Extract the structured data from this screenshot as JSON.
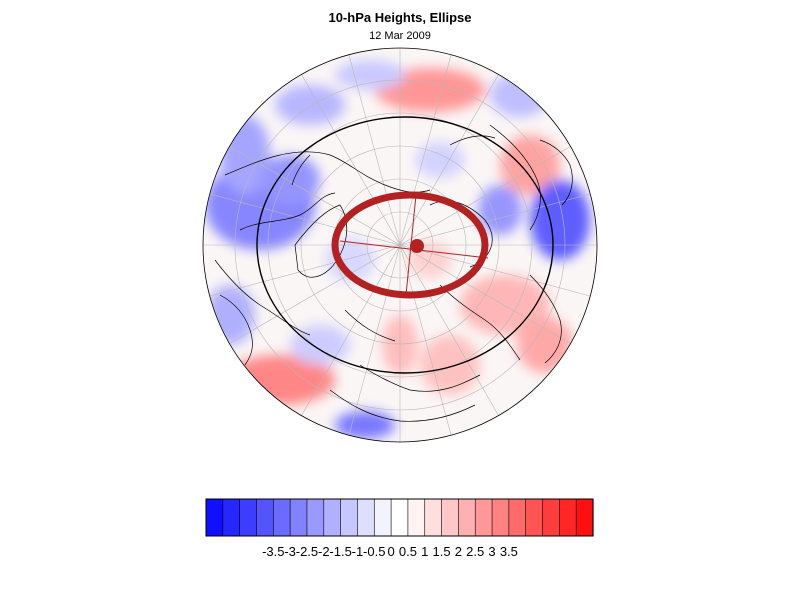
{
  "header": {
    "title": "10-hPa Heights, Ellipse",
    "subtitle": "12 Mar 2009"
  },
  "map": {
    "projection": "north-polar-stereographic",
    "field": "10-hPa height anomaly",
    "grid": true,
    "ellipse_color": "#b22222",
    "center_marker_color": "#b22222",
    "contour_color": "#000000"
  },
  "colorbar": {
    "colors": [
      "#1010ff",
      "#2626ff",
      "#3d3dff",
      "#5454ff",
      "#6b6bff",
      "#8282ff",
      "#9999ff",
      "#b0b0ff",
      "#c7c7ff",
      "#dedeff",
      "#f3f3ff",
      "#ffffff",
      "#fff3f3",
      "#ffdede",
      "#ffc7c7",
      "#ffb0b0",
      "#ff9999",
      "#ff8282",
      "#ff6b6b",
      "#ff5454",
      "#ff3d3d",
      "#ff2626",
      "#ff1010"
    ],
    "labels": [
      "-3.5",
      "-3",
      "-2.5",
      "-2",
      "-1.5",
      "-1",
      "-0.5",
      "0",
      "0.5",
      "1",
      "1.5",
      "2",
      "2.5",
      "3",
      "3.5"
    ]
  }
}
